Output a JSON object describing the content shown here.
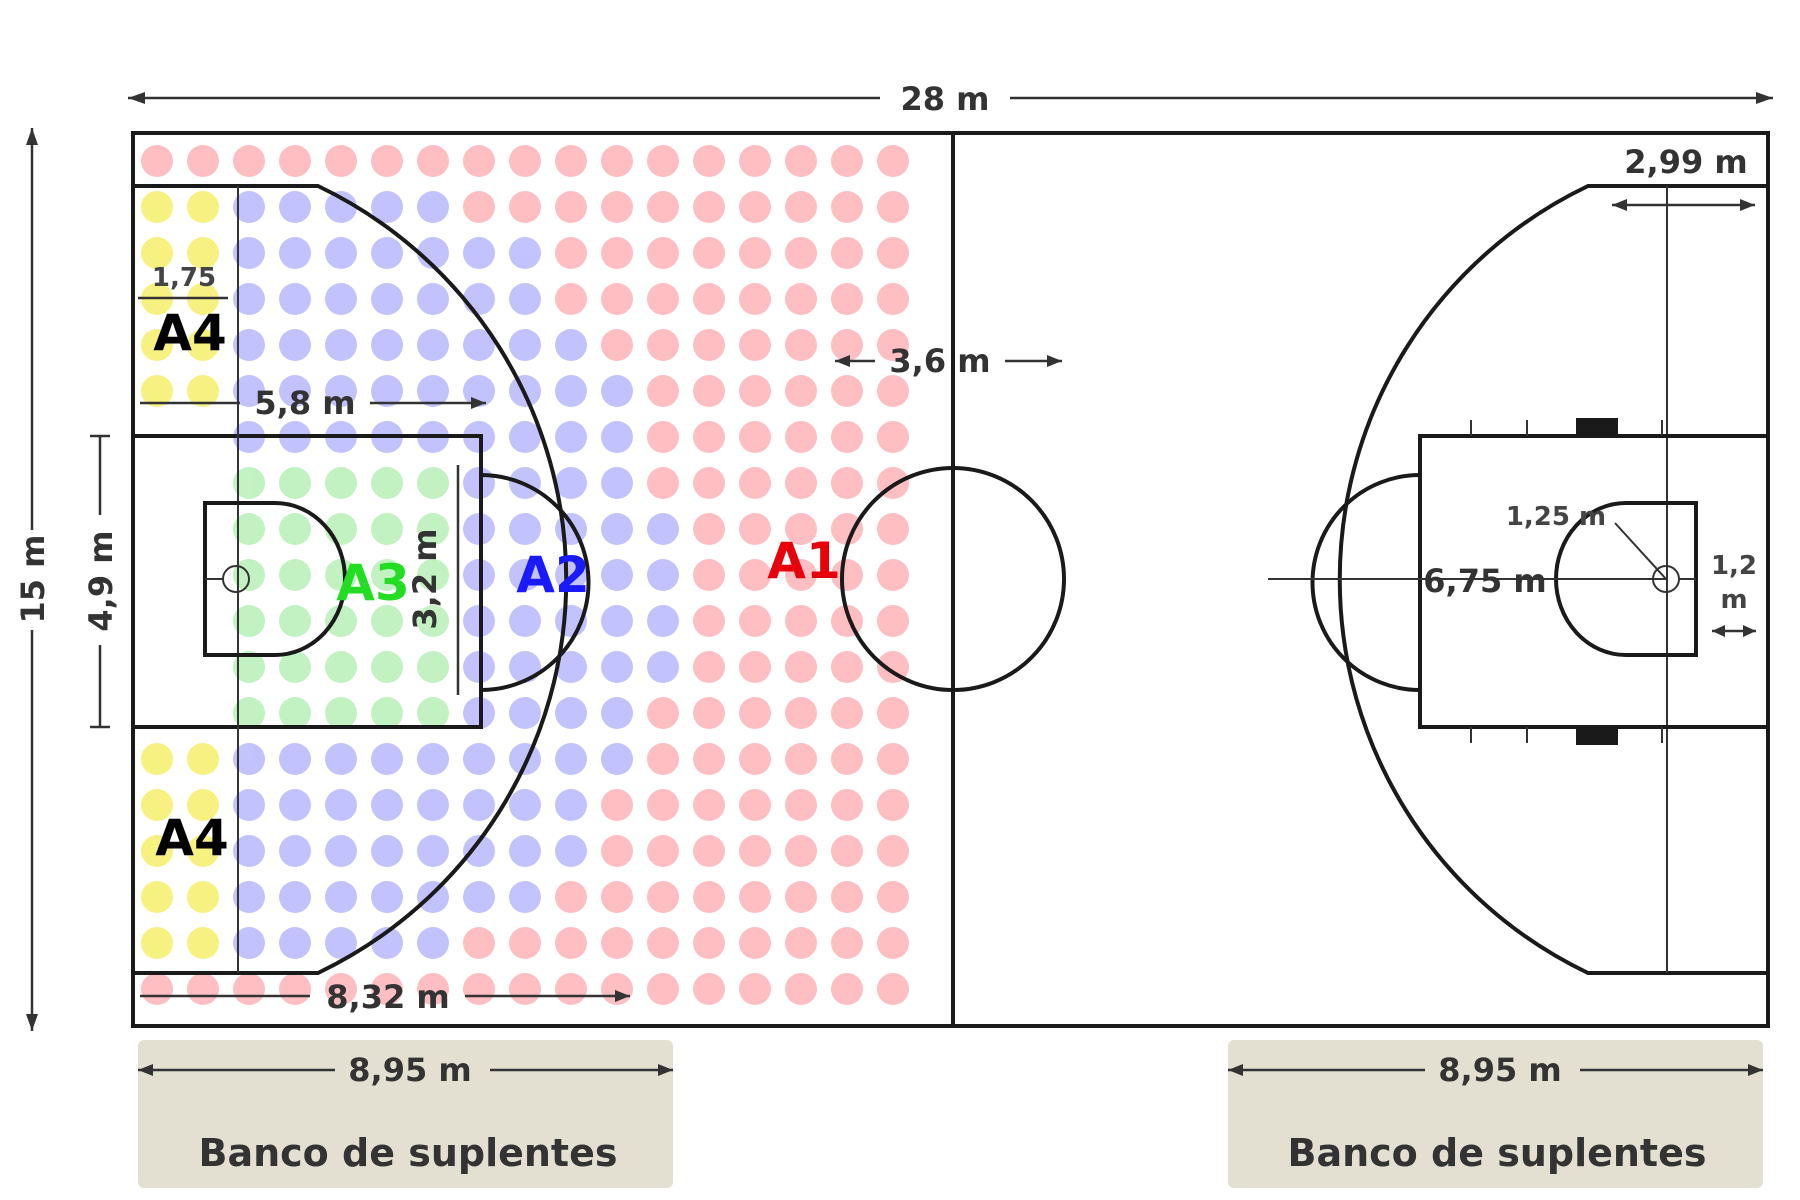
{
  "court": {
    "length_label": "28 m",
    "width_label": "15 m",
    "key_width_label": "4,9 m",
    "corner_distance_label": "2,99 m",
    "lane_space_label": "1,75",
    "three_point_baseline_label": "5,8 m",
    "center_offset_label": "3,6 m",
    "backboard_width_label": "3,2 m",
    "free_throw_circle_radius_label": "1,25 m",
    "three_point_radius_label": "6,75 m",
    "basket_distance_label_line1": "1,2",
    "basket_distance_label_line2": "m",
    "three_point_corner_label": "8,32 m",
    "line_color": "#1a1a1a"
  },
  "benches": [
    {
      "distance_label": "8,95 m",
      "bench_label": "Banco de suplentes"
    },
    {
      "distance_label": "8,95 m",
      "bench_label": "Banco de suplentes"
    }
  ],
  "zones": [
    {
      "label": "A1",
      "color": "#e8000b",
      "dot_color": "#ffb3b8"
    },
    {
      "label": "A2",
      "color": "#1a1aff",
      "dot_color": "#b8b8ff"
    },
    {
      "label": "A3",
      "color": "#22dd22",
      "dot_color": "#b8f0b8"
    },
    {
      "label": "A4",
      "color": "#000000",
      "dot_color": "#f5ef6a"
    }
  ]
}
